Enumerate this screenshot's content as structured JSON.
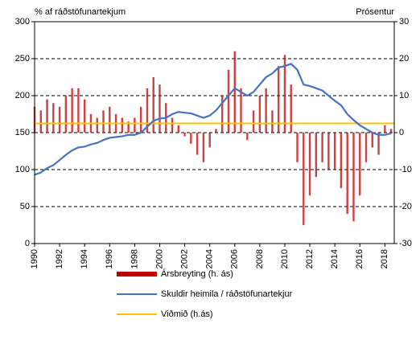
{
  "chart_data": {
    "type": "bar-line",
    "y_label": "% af ráðstöfunartekjum",
    "y2_label": "Prósentur",
    "x": [
      1990,
      1990.5,
      1991,
      1991.5,
      1992,
      1992.5,
      1993,
      1993.5,
      1994,
      1994.5,
      1995,
      1995.5,
      1996,
      1996.5,
      1997,
      1997.5,
      1998,
      1998.5,
      1999,
      1999.5,
      2000,
      2000.5,
      2001,
      2001.5,
      2002,
      2002.5,
      2003,
      2003.5,
      2004,
      2004.5,
      2005,
      2005.5,
      2006,
      2006.5,
      2007,
      2007.5,
      2008,
      2008.5,
      2009,
      2009.5,
      2010,
      2010.5,
      2011,
      2011.5,
      2012,
      2012.5,
      2013,
      2013.5,
      2014,
      2014.5,
      2015,
      2015.5,
      2016,
      2016.5,
      2017,
      2017.5,
      2018,
      2018.5
    ],
    "series": [
      {
        "name": "Ársbreyting (h. ás)",
        "type": "bar",
        "axis": "y2",
        "color": "#c00000",
        "values": [
          7,
          6,
          9,
          8,
          7,
          10,
          12,
          12,
          9,
          5,
          4,
          6,
          7,
          5,
          4,
          3,
          4,
          7,
          12,
          15,
          13,
          8,
          4,
          2,
          -1,
          -3,
          -6,
          -8,
          -4,
          1,
          10,
          17,
          22,
          12,
          -2,
          6,
          10,
          12,
          6,
          18,
          21,
          13,
          -8,
          -25,
          -17,
          -12,
          -8,
          -10,
          -10,
          -15,
          -22,
          -24,
          -17,
          -8,
          -4,
          -6,
          2,
          1
        ]
      },
      {
        "name": "Skuldir heimila / ráðstöfunartekjur",
        "type": "line",
        "axis": "y",
        "color": "#4472c4",
        "values": [
          93,
          96,
          102,
          106,
          113,
          120,
          126,
          130,
          131,
          134,
          136,
          140,
          143,
          144,
          145,
          147,
          147,
          150,
          158,
          166,
          169,
          170,
          175,
          178,
          177,
          176,
          173,
          170,
          173,
          180,
          190,
          200,
          210,
          205,
          200,
          205,
          215,
          225,
          230,
          238,
          240,
          243,
          235,
          215,
          213,
          210,
          207,
          200,
          193,
          187,
          175,
          167,
          160,
          155,
          150,
          147,
          147,
          149
        ]
      }
    ],
    "reference": {
      "name": "Viðmið (h.ás)",
      "value": 2.5,
      "axis": "y2",
      "color": "#ffc000"
    },
    "xlim": [
      1990,
      2018.75
    ],
    "xticks": [
      1990,
      1992,
      1994,
      1996,
      1998,
      2000,
      2002,
      2004,
      2006,
      2008,
      2010,
      2012,
      2014,
      2016,
      2018
    ],
    "ylim": [
      0,
      300
    ],
    "yticks": [
      0,
      50,
      100,
      150,
      200,
      250,
      300
    ],
    "y2lim": [
      -30,
      30
    ],
    "y2ticks": [
      -30,
      -20,
      -10,
      0,
      10,
      20,
      30
    ],
    "grid": true
  }
}
